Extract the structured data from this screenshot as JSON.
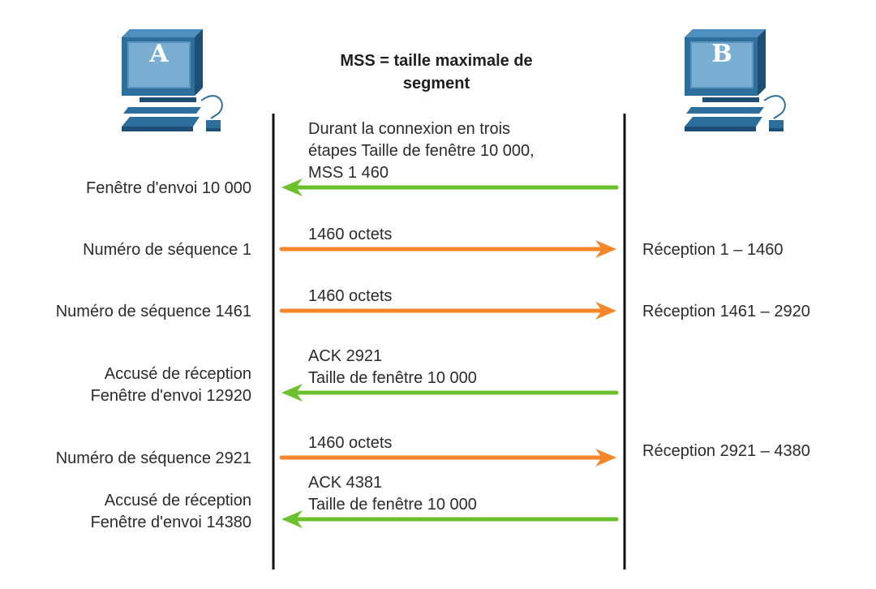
{
  "title": [
    "MSS = taille maximale de",
    "segment"
  ],
  "hosts": {
    "left": {
      "label": "A",
      "icon": "computer-icon"
    },
    "right": {
      "label": "B",
      "icon": "computer-icon"
    }
  },
  "colors": {
    "ack_arrow": "#6cc02e",
    "data_arrow": "#f5862a",
    "computer": "#2e6e9c",
    "lifeline": "#111111"
  },
  "messages": [
    {
      "direction": "B-to-A",
      "kind": "ack",
      "arrow_text": [
        "Durant la connexion en trois",
        "étapes Taille de fenêtre 10 000,",
        "MSS 1 460"
      ],
      "left_text": [
        "Fenêtre d'envoi 10 000"
      ],
      "right_text": []
    },
    {
      "direction": "A-to-B",
      "kind": "data",
      "arrow_text": [
        "1460 octets"
      ],
      "left_text": [
        "Numéro de séquence 1"
      ],
      "right_text": [
        "Réception 1 – 1460"
      ]
    },
    {
      "direction": "A-to-B",
      "kind": "data",
      "arrow_text": [
        "1460 octets"
      ],
      "left_text": [
        "Numéro de séquence 1461"
      ],
      "right_text": [
        "Réception 1461 – 2920"
      ]
    },
    {
      "direction": "B-to-A",
      "kind": "ack",
      "arrow_text": [
        "ACK 2921",
        "Taille de fenêtre 10 000"
      ],
      "left_text": [
        "Accusé de réception",
        "Fenêtre d'envoi 12920"
      ],
      "right_text": []
    },
    {
      "direction": "A-to-B",
      "kind": "data",
      "arrow_text": [
        "1460 octets"
      ],
      "left_text": [
        "Numéro de séquence 2921"
      ],
      "right_text": [
        "Réception 2921 – 4380"
      ]
    },
    {
      "direction": "B-to-A",
      "kind": "ack",
      "arrow_text": [
        "ACK 4381",
        "Taille de fenêtre 10 000"
      ],
      "left_text": [
        "Accusé de réception",
        "Fenêtre d'envoi 14380"
      ],
      "right_text": []
    }
  ]
}
